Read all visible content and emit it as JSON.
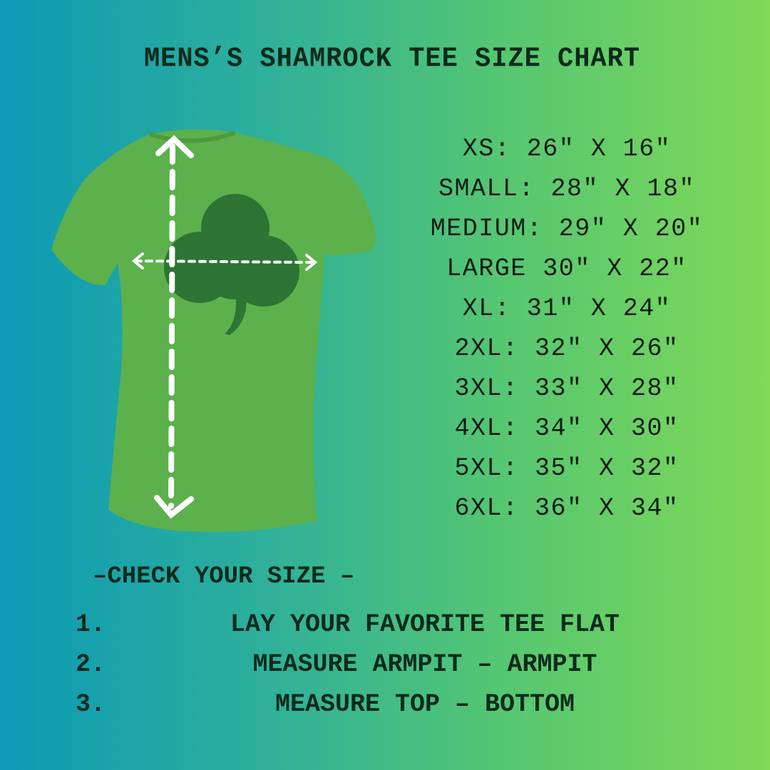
{
  "title": "MENS’S SHAMROCK TEE SIZE CHART",
  "sizes": [
    "XS: 26\" X 16\"",
    "SMALL: 28\" X 18\"",
    "MEDIUM: 29\" X 20\"",
    "LARGE 30\" X 22\"",
    "XL: 31\" X 24\"",
    "2XL: 32\" X 26\"",
    "3XL: 33\" X 28\"",
    "4XL: 34\" X 30\"",
    "5XL: 35\" X 32\"",
    "6XL: 36\" X 34\""
  ],
  "check_heading": "–CHECK YOUR SIZE –",
  "steps": [
    {
      "num": "1.",
      "text": "LAY YOUR FAVORITE TEE FLAT"
    },
    {
      "num": "2.",
      "text": "MEASURE ARMPIT – ARMPIT"
    },
    {
      "num": "3.",
      "text": "MEASURE TOP – BOTTOM"
    }
  ],
  "colors": {
    "gradient_left": "#0c9ab6",
    "gradient_right": "#80d957",
    "shirt": "#5cb14c",
    "shamrock": "#2e7434",
    "arrows": "#ffffff"
  },
  "icons": [
    "t-shirt-image",
    "shamrock-icon",
    "vertical-measure-arrow",
    "horizontal-measure-arrow"
  ]
}
